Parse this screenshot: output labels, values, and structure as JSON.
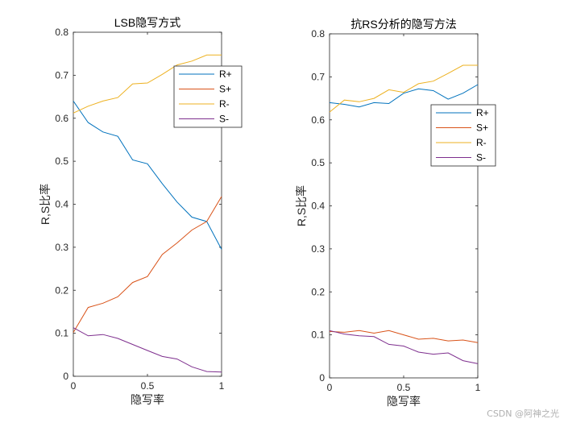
{
  "chart_data": [
    {
      "type": "line",
      "title": "LSB隐写方式",
      "xlabel": "隐写率",
      "ylabel": "R,S比率",
      "xlim": [
        0,
        1
      ],
      "ylim": [
        0,
        0.8
      ],
      "xticks": [
        "0",
        "0.5",
        "1"
      ],
      "yticks": [
        "0",
        "0.1",
        "0.2",
        "0.3",
        "0.4",
        "0.5",
        "0.6",
        "0.7",
        "0.8"
      ],
      "legend_position": "top-right",
      "x": [
        0,
        0.1,
        0.2,
        0.3,
        0.4,
        0.5,
        0.6,
        0.7,
        0.8,
        0.9,
        1.0
      ],
      "series": [
        {
          "name": "R+",
          "color": "#0072BD",
          "values": [
            0.64,
            0.59,
            0.568,
            0.558,
            0.503,
            0.494,
            0.448,
            0.405,
            0.37,
            0.36,
            0.295
          ]
        },
        {
          "name": "S+",
          "color": "#D95319",
          "values": [
            0.102,
            0.16,
            0.17,
            0.185,
            0.218,
            0.232,
            0.283,
            0.31,
            0.34,
            0.36,
            0.418
          ]
        },
        {
          "name": "R-",
          "color": "#EDB120",
          "values": [
            0.612,
            0.628,
            0.64,
            0.648,
            0.68,
            0.682,
            0.702,
            0.724,
            0.733,
            0.747,
            0.747
          ]
        },
        {
          "name": "S-",
          "color": "#7E2F8E",
          "values": [
            0.113,
            0.094,
            0.097,
            0.088,
            0.074,
            0.06,
            0.046,
            0.04,
            0.022,
            0.011,
            0.01
          ]
        }
      ]
    },
    {
      "type": "line",
      "title": "抗RS分析的隐写方法",
      "xlabel": "隐写率",
      "ylabel": "R,S比率",
      "xlim": [
        0,
        1
      ],
      "ylim": [
        0,
        0.8
      ],
      "xticks": [
        "0",
        "0.5",
        "1"
      ],
      "yticks": [
        "0",
        "0.1",
        "0.2",
        "0.3",
        "0.4",
        "0.5",
        "0.6",
        "0.7",
        "0.8"
      ],
      "legend_position": "right",
      "x": [
        0,
        0.1,
        0.2,
        0.3,
        0.4,
        0.5,
        0.6,
        0.7,
        0.8,
        0.9,
        1.0
      ],
      "series": [
        {
          "name": "R+",
          "color": "#0072BD",
          "values": [
            0.64,
            0.636,
            0.63,
            0.64,
            0.638,
            0.662,
            0.672,
            0.668,
            0.648,
            0.662,
            0.682
          ]
        },
        {
          "name": "S+",
          "color": "#D95319",
          "values": [
            0.108,
            0.106,
            0.11,
            0.104,
            0.11,
            0.1,
            0.09,
            0.092,
            0.086,
            0.088,
            0.082
          ]
        },
        {
          "name": "R-",
          "color": "#EDB120",
          "values": [
            0.618,
            0.646,
            0.642,
            0.65,
            0.67,
            0.664,
            0.684,
            0.69,
            0.708,
            0.727,
            0.727
          ]
        },
        {
          "name": "S-",
          "color": "#7E2F8E",
          "values": [
            0.11,
            0.102,
            0.098,
            0.096,
            0.078,
            0.074,
            0.06,
            0.055,
            0.058,
            0.04,
            0.033
          ]
        }
      ]
    }
  ],
  "watermark": "CSDN @阿神之光"
}
